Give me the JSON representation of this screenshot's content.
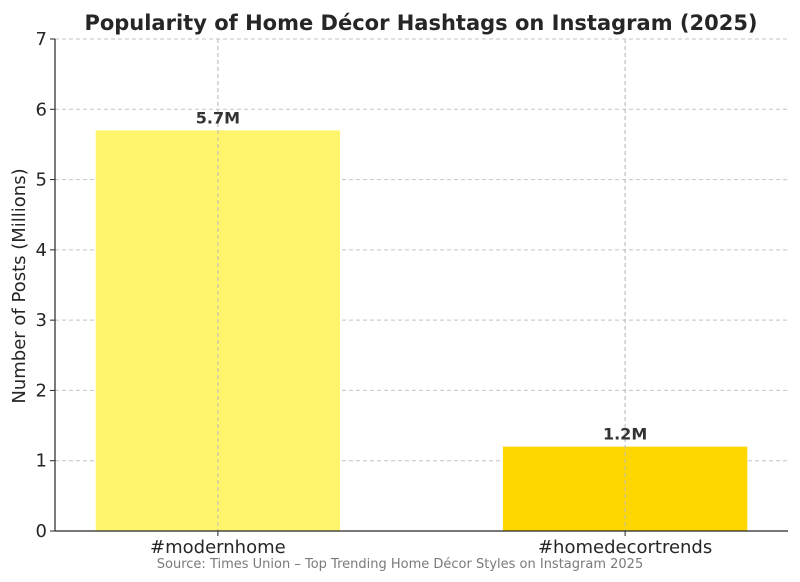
{
  "chart_data": {
    "type": "bar",
    "title": "Popularity of Home Décor Hashtags on Instagram (2025)",
    "xlabel": "",
    "ylabel": "Number of Posts (Millions)",
    "categories": [
      "#modernhome",
      "#homedecortrends"
    ],
    "values": [
      5.7,
      1.2
    ],
    "data_labels": [
      "5.7M",
      "1.2M"
    ],
    "colors": [
      "#FFF56D",
      "#FFD700"
    ],
    "ylim": [
      0,
      7
    ],
    "yticks": [
      0,
      1,
      2,
      3,
      4,
      5,
      6,
      7
    ],
    "grid": true,
    "grid_style": "dashed",
    "source": "Source: Times Union – Top Trending Home Décor Styles on Instagram 2025"
  }
}
